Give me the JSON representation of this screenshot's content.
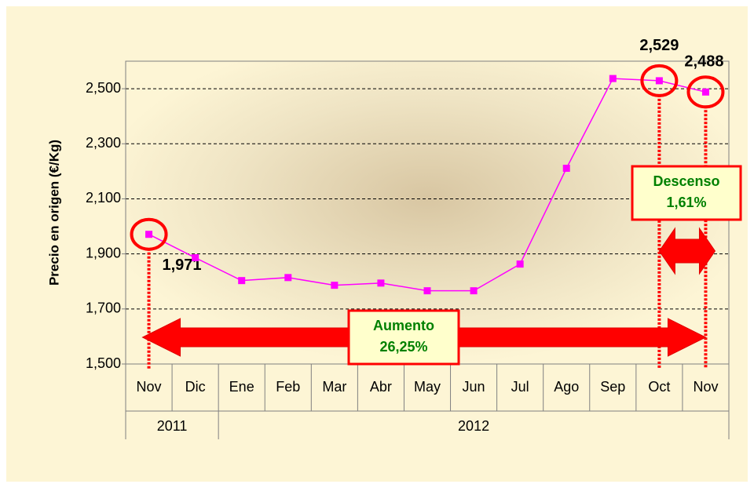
{
  "chart_data": {
    "type": "line",
    "y_label": "Precio en origen (€/Kg)",
    "categories": [
      "Nov",
      "Dic",
      "Ene",
      "Feb",
      "Mar",
      "Abr",
      "May",
      "Jun",
      "Jul",
      "Ago",
      "Sep",
      "Oct",
      "Nov"
    ],
    "years": [
      "2011",
      "2011",
      "2012",
      "2012",
      "2012",
      "2012",
      "2012",
      "2012",
      "2012",
      "2012",
      "2012",
      "2012",
      "2012"
    ],
    "series": [
      {
        "color": "#ff00ff",
        "values": [
          1.971,
          1.886,
          1.803,
          1.814,
          1.786,
          1.794,
          1.766,
          1.766,
          1.863,
          2.211,
          2.537,
          2.529,
          2.488
        ],
        "value_labels": [
          "1,971",
          null,
          null,
          null,
          null,
          null,
          null,
          null,
          null,
          null,
          null,
          "2,529",
          "2,488"
        ]
      }
    ],
    "ylim": [
      1.5,
      2.6
    ],
    "yticks": [
      {
        "value": 1.5,
        "label": "1,500"
      },
      {
        "value": 1.7,
        "label": "1,700"
      },
      {
        "value": 1.9,
        "label": "1,900"
      },
      {
        "value": 2.1,
        "label": "2,100"
      },
      {
        "value": 2.3,
        "label": "2,300"
      },
      {
        "value": 2.5,
        "label": "2,500"
      }
    ],
    "grid": true,
    "annotations": [
      {
        "title": "Aumento",
        "text": "26,25%"
      },
      {
        "title": "Descenso",
        "text": "1,61%"
      }
    ]
  }
}
